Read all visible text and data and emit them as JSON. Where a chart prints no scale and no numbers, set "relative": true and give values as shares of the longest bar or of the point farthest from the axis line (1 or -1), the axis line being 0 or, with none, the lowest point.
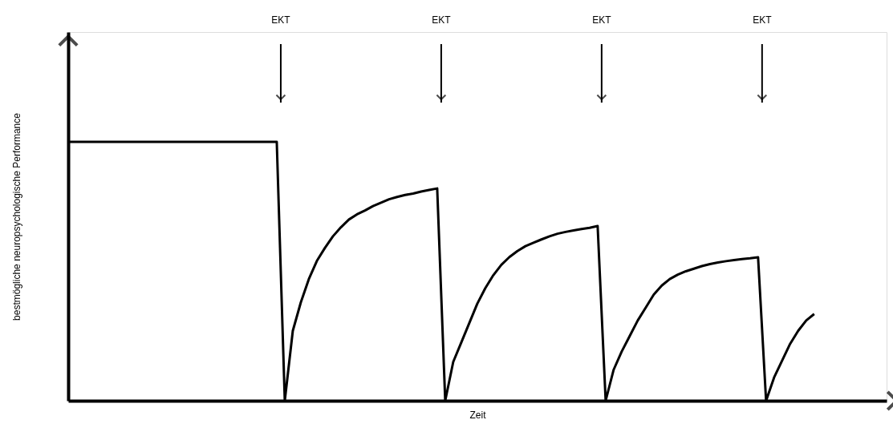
{
  "chart_data": {
    "type": "line",
    "relative": true,
    "xlabel": "Zeit",
    "ylabel": "bestmögliche neuropsychologische Performance",
    "tick_labels": false,
    "categories": [
      null,
      null,
      null,
      null,
      null,
      null,
      null,
      null,
      null,
      null,
      null,
      null,
      null,
      null,
      null,
      null,
      null,
      null,
      null,
      null,
      null,
      null,
      null,
      null,
      null,
      null,
      null,
      null,
      null,
      null,
      null,
      null,
      null,
      null,
      null,
      null,
      null,
      null,
      null,
      null,
      null,
      null,
      null,
      null,
      null,
      null,
      null,
      null,
      null,
      null,
      null,
      null,
      null,
      null,
      null,
      null,
      null,
      null,
      null,
      null,
      null,
      null,
      null,
      null,
      null,
      null,
      null,
      null,
      null,
      null,
      null,
      null,
      null,
      null,
      null,
      null,
      null,
      null,
      null,
      null,
      null,
      null,
      null,
      null,
      null,
      null,
      null,
      null,
      null,
      null,
      null,
      null,
      null,
      null
    ],
    "series": [
      {
        "color": "#000000",
        "values": [
          1.0,
          1.0,
          1.0,
          1.0,
          1.0,
          1.0,
          1.0,
          1.0,
          1.0,
          1.0,
          1.0,
          1.0,
          1.0,
          1.0,
          1.0,
          1.0,
          1.0,
          1.0,
          1.0,
          1.0,
          1.0,
          1.0,
          1.0,
          1.0,
          1.0,
          1.0,
          1.0,
          0,
          0.27,
          0.38,
          0.47,
          0.54,
          0.59,
          0.635,
          0.67,
          0.7,
          0.72,
          0.735,
          0.752,
          0.765,
          0.778,
          0.787,
          0.795,
          0.8,
          0.808,
          0.814,
          0.82,
          0,
          0.15,
          0.225,
          0.3,
          0.375,
          0.435,
          0.485,
          0.525,
          0.555,
          0.578,
          0.597,
          0.61,
          0.623,
          0.635,
          0.645,
          0.652,
          0.658,
          0.663,
          0.668,
          0.675,
          0,
          0.12,
          0.19,
          0.25,
          0.31,
          0.36,
          0.41,
          0.445,
          0.47,
          0.487,
          0.5,
          0.51,
          0.52,
          0.528,
          0.534,
          0.539,
          0.543,
          0.547,
          0.55,
          0.554,
          0,
          0.09,
          0.155,
          0.22,
          0.27,
          0.31,
          0.335
        ]
      }
    ],
    "annotations": [
      "EKT",
      "EKT",
      "EKT",
      "EKT"
    ]
  }
}
